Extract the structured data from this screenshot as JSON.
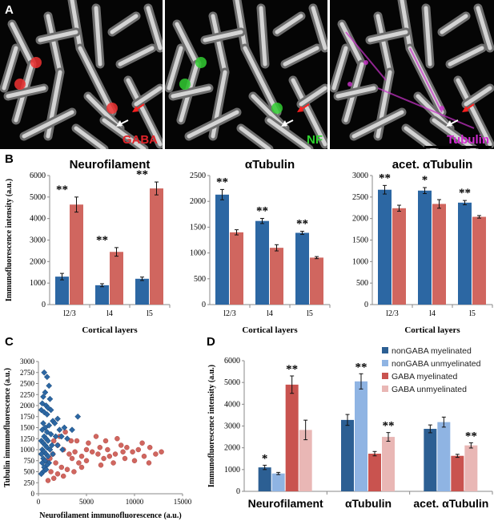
{
  "panels": {
    "a": "A",
    "b": "B",
    "c": "C",
    "d": "D"
  },
  "micrographs": [
    {
      "label": "GABA",
      "color": "#e0242a",
      "stain": "#e33"
    },
    {
      "label": "NF",
      "color": "#2ed22e",
      "stain": "#3c3"
    },
    {
      "label": "Tubulin",
      "color": "#d12ad1",
      "stain": "#c3c"
    }
  ],
  "colors": {
    "nongaba_myel": "#2c5f93",
    "nongaba_unmyel": "#8fb4e3",
    "gaba_myel": "#c9534f",
    "gaba_unmyel": "#e9b7b5",
    "blue_bar": "#2c67a3",
    "red_bar": "#d0665f"
  },
  "chart_data": [
    {
      "type": "bar",
      "title": "Neurofilament",
      "xlabel": "Cortical layers",
      "ylabel": "Immunofluorescence intensity (a.u.)",
      "categories": [
        "l2/3",
        "l4",
        "l5"
      ],
      "ylim": [
        0,
        6000
      ],
      "yticks": [
        "0",
        "1000",
        "2000",
        "3000",
        "4000",
        "5000",
        "6000"
      ],
      "series": [
        {
          "values": [
            1300,
            900,
            1200
          ],
          "errors": [
            150,
            70,
            80
          ]
        },
        {
          "values": [
            4650,
            2450,
            5400
          ],
          "errors": [
            350,
            200,
            300
          ]
        }
      ],
      "significance": [
        "**",
        "**",
        "**"
      ]
    },
    {
      "type": "bar",
      "title": "αTubulin",
      "xlabel": "Cortical layers",
      "ylabel": "",
      "categories": [
        "l2/3",
        "l4",
        "l5"
      ],
      "ylim": [
        0,
        2500
      ],
      "yticks": [
        "0",
        "500",
        "1000",
        "1500",
        "2000",
        "2500"
      ],
      "series": [
        {
          "values": [
            2130,
            1620,
            1390
          ],
          "errors": [
            100,
            50,
            30
          ]
        },
        {
          "values": [
            1400,
            1100,
            910
          ],
          "errors": [
            50,
            60,
            20
          ]
        }
      ],
      "significance": [
        "**",
        "**",
        "**"
      ]
    },
    {
      "type": "bar",
      "title": "acet. αTubulin",
      "xlabel": "Cortical layers",
      "ylabel": "",
      "categories": [
        "l2/3",
        "l4",
        "l5"
      ],
      "ylim": [
        0,
        3000
      ],
      "yticks": [
        "0",
        "500",
        "1000",
        "1500",
        "2000",
        "2500",
        "3000"
      ],
      "series": [
        {
          "values": [
            2670,
            2650,
            2370
          ],
          "errors": [
            100,
            70,
            50
          ]
        },
        {
          "values": [
            2240,
            2340,
            2040
          ],
          "errors": [
            70,
            100,
            30
          ]
        }
      ],
      "significance": [
        "**",
        "*",
        "**"
      ]
    },
    {
      "type": "scatter",
      "title": "",
      "xlabel": "Neurofilament immunofluorescence (a.u.)",
      "ylabel": "Tubulin immunofluorescence (a.u.)",
      "xlim": [
        0,
        15000
      ],
      "ylim": [
        0,
        3000
      ],
      "xticks": [
        "0",
        "5000",
        "10000",
        "15000"
      ],
      "yticks": [
        "0",
        "250",
        "500",
        "750",
        "1000",
        "1250",
        "1500",
        "1750",
        "2000",
        "2250",
        "2500",
        "2750",
        "3000"
      ],
      "series": [
        {
          "marker": "diamond",
          "points": [
            [
              600,
              2750
            ],
            [
              900,
              2650
            ],
            [
              1100,
              2450
            ],
            [
              700,
              2300
            ],
            [
              500,
              2200
            ],
            [
              1200,
              2150
            ],
            [
              400,
              2050
            ],
            [
              800,
              2000
            ],
            [
              1000,
              1950
            ],
            [
              300,
              1900
            ],
            [
              600,
              1850
            ],
            [
              900,
              1800
            ],
            [
              2000,
              1700
            ],
            [
              1500,
              1650
            ],
            [
              500,
              1600
            ],
            [
              1100,
              1550
            ],
            [
              700,
              1500
            ],
            [
              2700,
              1500
            ],
            [
              3500,
              1450
            ],
            [
              400,
              1450
            ],
            [
              900,
              1400
            ],
            [
              1300,
              1350
            ],
            [
              600,
              1300
            ],
            [
              1800,
              1300
            ],
            [
              2400,
              1300
            ],
            [
              800,
              1250
            ],
            [
              300,
              1200
            ],
            [
              1000,
              1200
            ],
            [
              500,
              1150
            ],
            [
              1400,
              1100
            ],
            [
              700,
              1100
            ],
            [
              2000,
              1100
            ],
            [
              900,
              1050
            ],
            [
              400,
              1000
            ],
            [
              1200,
              1000
            ],
            [
              600,
              950
            ],
            [
              800,
              900
            ],
            [
              300,
              900
            ],
            [
              1000,
              850
            ],
            [
              500,
              800
            ],
            [
              700,
              750
            ],
            [
              400,
              700
            ],
            [
              1100,
              700
            ],
            [
              900,
              650
            ],
            [
              600,
              600
            ],
            [
              500,
              500
            ],
            [
              800,
              550
            ],
            [
              300,
              450
            ],
            [
              1500,
              900
            ],
            [
              2500,
              1000
            ],
            [
              1700,
              1600
            ],
            [
              1300,
              1900
            ],
            [
              2200,
              1450
            ],
            [
              4100,
              1750
            ],
            [
              3000,
              1250
            ]
          ]
        },
        {
          "marker": "circle",
          "points": [
            [
              1500,
              900
            ],
            [
              2000,
              1100
            ],
            [
              2600,
              1000
            ],
            [
              3200,
              900
            ],
            [
              3800,
              950
            ],
            [
              4500,
              850
            ],
            [
              5000,
              1000
            ],
            [
              5600,
              950
            ],
            [
              6200,
              900
            ],
            [
              6800,
              800
            ],
            [
              7400,
              850
            ],
            [
              8000,
              900
            ],
            [
              8600,
              1100
            ],
            [
              9200,
              1050
            ],
            [
              9800,
              950
            ],
            [
              10400,
              1000
            ],
            [
              11000,
              850
            ],
            [
              11600,
              1050
            ],
            [
              12200,
              900
            ],
            [
              12800,
              950
            ],
            [
              4000,
              1200
            ],
            [
              5200,
              1150
            ],
            [
              6000,
              1300
            ],
            [
              7000,
              1200
            ],
            [
              8200,
              1250
            ],
            [
              3500,
              800
            ],
            [
              4200,
              700
            ],
            [
              5000,
              750
            ],
            [
              6500,
              650
            ],
            [
              7800,
              700
            ],
            [
              9000,
              800
            ],
            [
              10000,
              750
            ],
            [
              11500,
              700
            ],
            [
              2400,
              600
            ],
            [
              3000,
              550
            ],
            [
              3700,
              500
            ],
            [
              4500,
              600
            ],
            [
              1800,
              700
            ],
            [
              1200,
              800
            ],
            [
              900,
              750
            ],
            [
              1600,
              1200
            ],
            [
              2200,
              1300
            ],
            [
              2800,
              1400
            ],
            [
              3400,
              1200
            ],
            [
              6400,
              1050
            ],
            [
              7200,
              1000
            ],
            [
              8800,
              950
            ],
            [
              10800,
              1150
            ],
            [
              1300,
              500
            ],
            [
              2000,
              450
            ],
            [
              2600,
              400
            ],
            [
              1000,
              300
            ],
            [
              1600,
              350
            ]
          ]
        }
      ]
    },
    {
      "type": "bar",
      "title": "",
      "xlabel": "",
      "ylabel": "Immunofluorescence intensity (a.u.)",
      "categories": [
        "Neurofilament",
        "αTubulin",
        "acet. αTubulin"
      ],
      "ylim": [
        0,
        6000
      ],
      "yticks": [
        "0",
        "1000",
        "2000",
        "3000",
        "4000",
        "5000",
        "6000"
      ],
      "series": [
        {
          "name": "nonGABA myelinated",
          "values": [
            1100,
            3280,
            2870
          ],
          "errors": [
            100,
            250,
            180
          ]
        },
        {
          "name": "nonGABA unmyelinated",
          "values": [
            820,
            5050,
            3180
          ],
          "errors": [
            50,
            350,
            230
          ]
        },
        {
          "name": "GABA myelinated",
          "values": [
            4900,
            1730,
            1630
          ],
          "errors": [
            400,
            100,
            70
          ]
        },
        {
          "name": "GABA unmyelinated",
          "values": [
            2820,
            2500,
            2110
          ],
          "errors": [
            450,
            200,
            120
          ]
        }
      ],
      "significance": [
        "*",
        "**",
        "**",
        "**",
        "**"
      ]
    }
  ]
}
